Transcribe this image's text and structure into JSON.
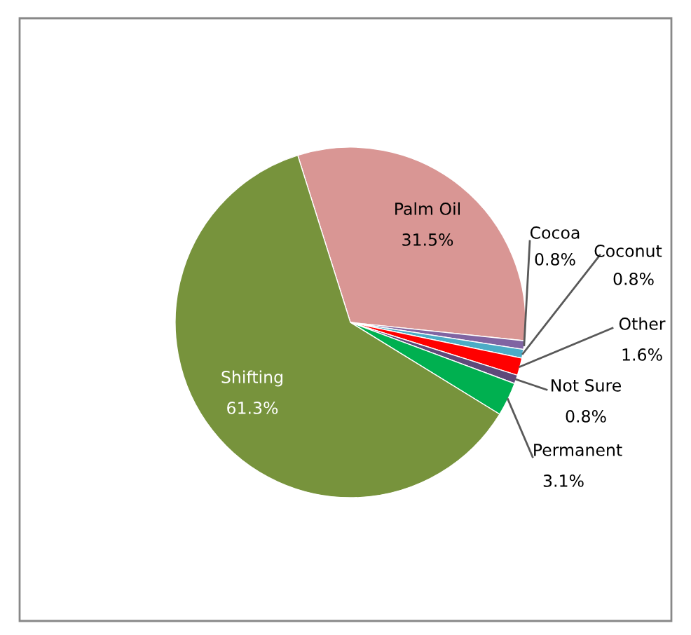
{
  "chart_data": {
    "type": "pie",
    "categories": [
      "Palm Oil",
      "Cocoa",
      "Coconut",
      "Other",
      "Not Sure",
      "Permanent",
      "Shifting"
    ],
    "values": [
      31.5,
      0.8,
      0.8,
      1.6,
      0.8,
      3.1,
      61.3
    ],
    "value_labels": [
      "31.5%",
      "0.8%",
      "0.8%",
      "1.6%",
      "0.8%",
      "3.1%",
      "61.3%"
    ],
    "colors": [
      "#d99694",
      "#8064a2",
      "#4bacc6",
      "#ff0000",
      "#5f497a",
      "#00b050",
      "#77933c"
    ],
    "legend": false
  }
}
